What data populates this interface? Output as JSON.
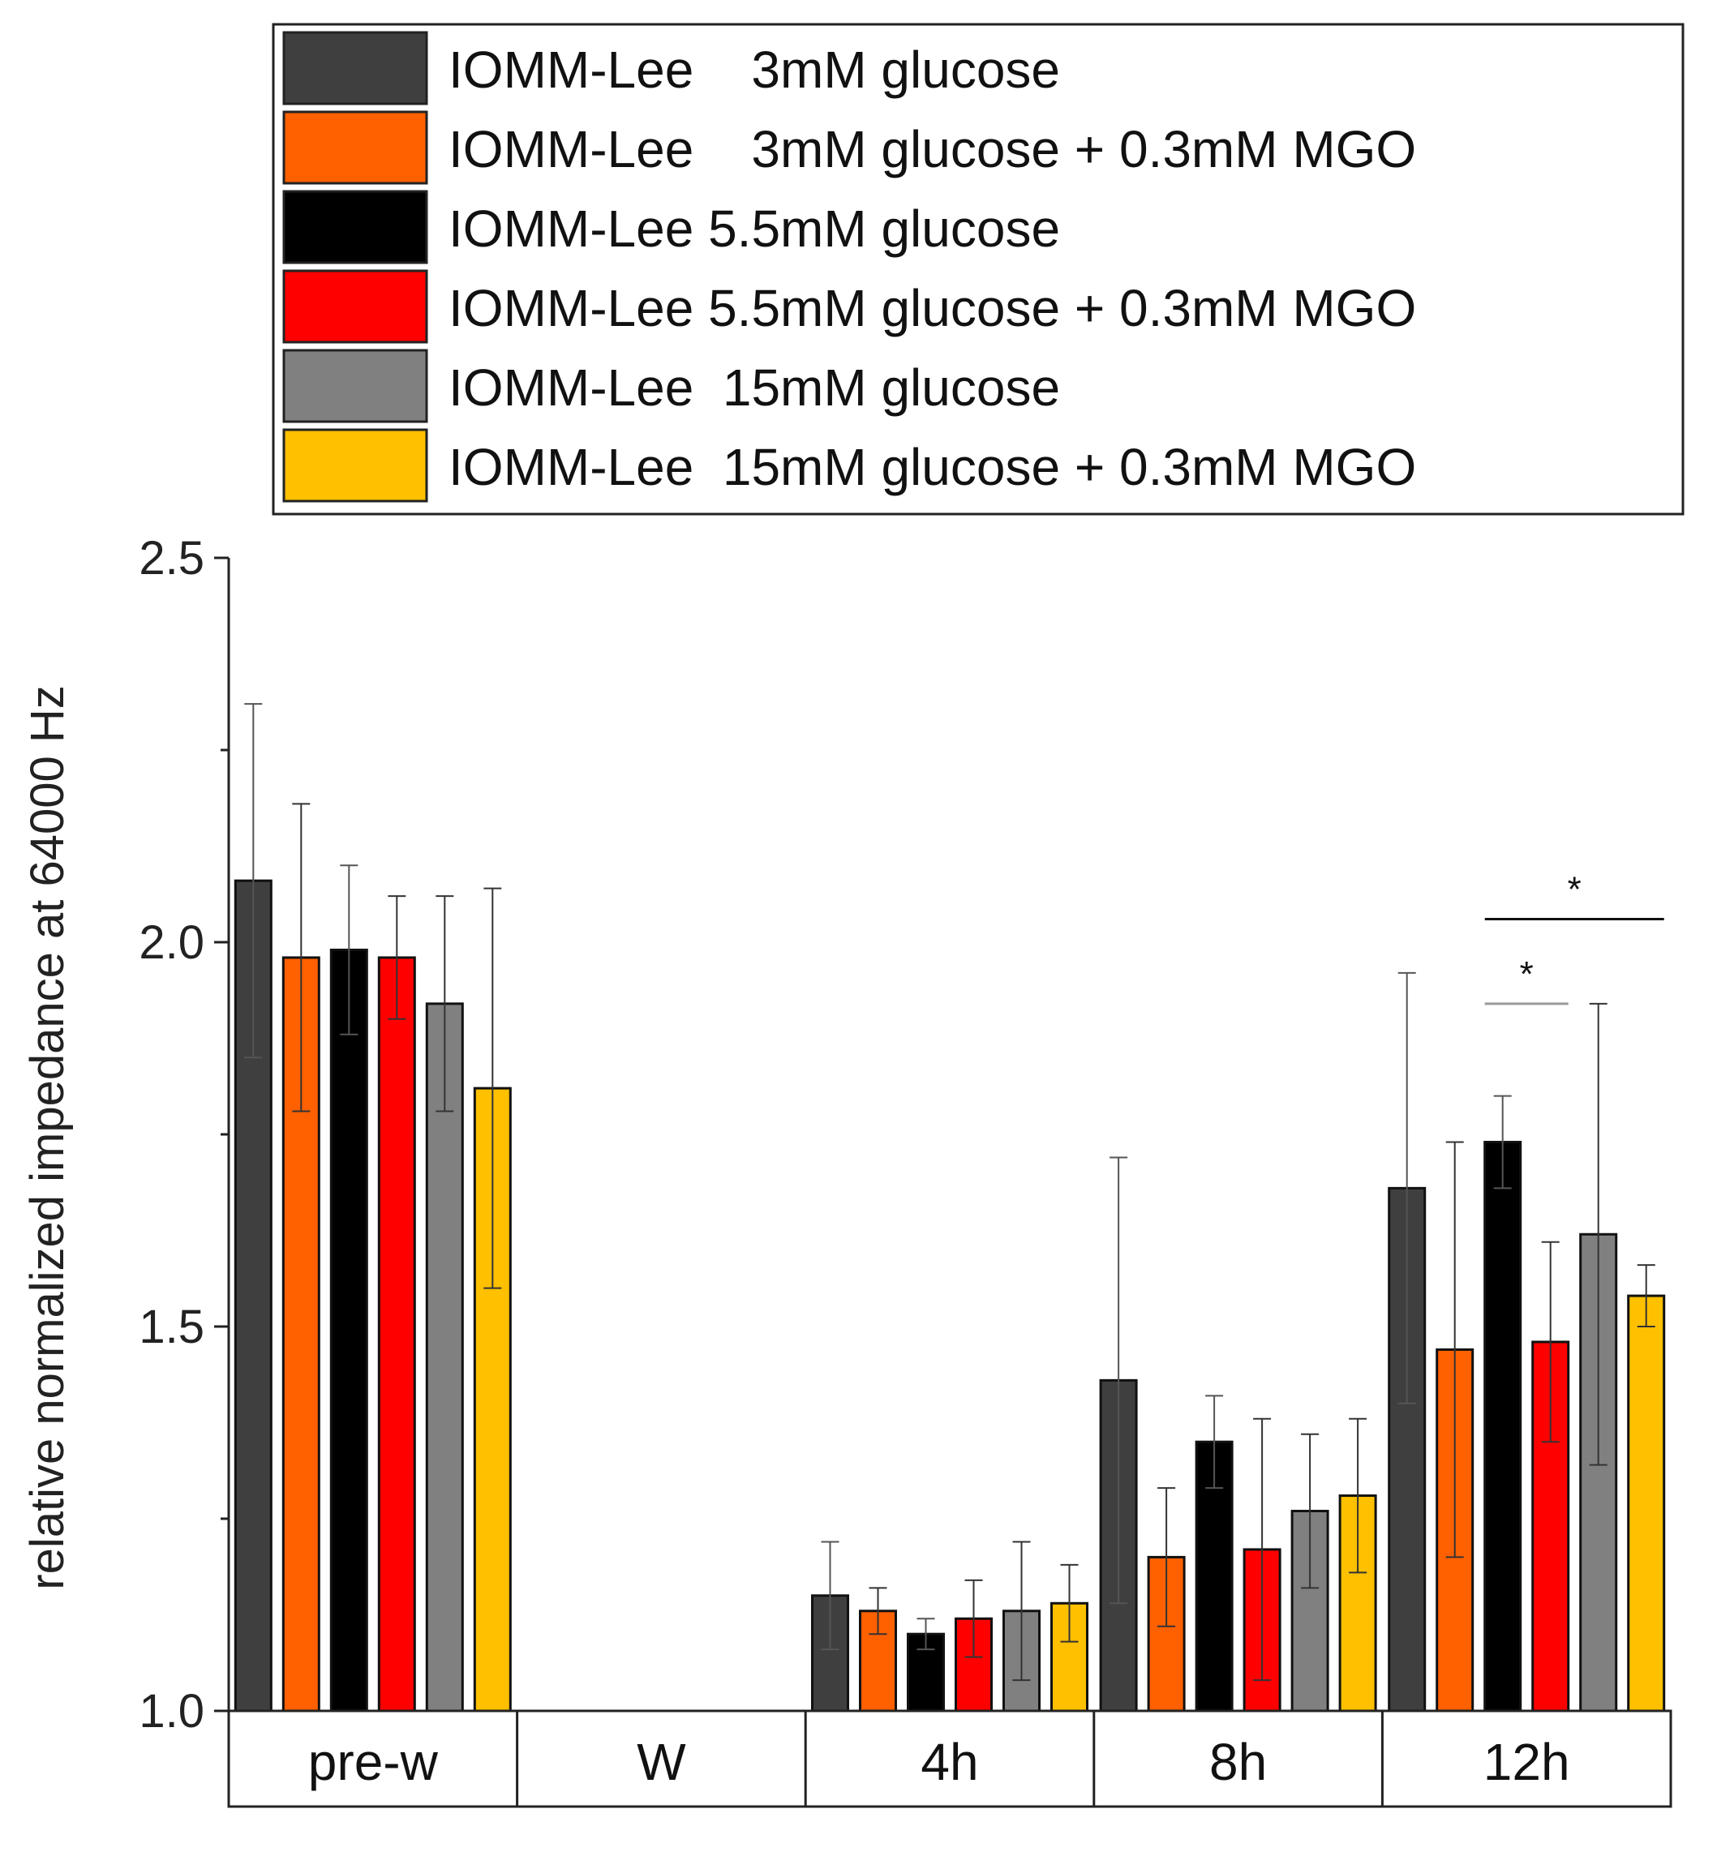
{
  "chart_data": {
    "type": "bar",
    "title": "",
    "xlabel": "",
    "ylabel": "relative normalized impedance at 64000 Hz",
    "ylim": [
      1.0,
      2.5
    ],
    "yticks": [
      "1.0",
      "1.5",
      "2.0",
      "2.5"
    ],
    "grid": false,
    "legend_position": "top",
    "categories": [
      "pre-w",
      "W",
      "4h",
      "8h",
      "12h"
    ],
    "series": [
      {
        "name": "IOMM-Lee    3mM glucose",
        "color": "#3f3f3f",
        "values": [
          2.08,
          null,
          1.15,
          1.43,
          1.68
        ],
        "errors": [
          0.23,
          null,
          0.07,
          0.29,
          0.28
        ]
      },
      {
        "name": "IOMM-Lee    3mM glucose + 0.3mM MGO",
        "color": "#ff6000",
        "values": [
          1.98,
          null,
          1.13,
          1.2,
          1.47
        ],
        "errors": [
          0.2,
          null,
          0.03,
          0.09,
          0.27
        ]
      },
      {
        "name": "IOMM-Lee 5.5mM glucose",
        "color": "#000000",
        "values": [
          1.99,
          null,
          1.1,
          1.35,
          1.74
        ],
        "errors": [
          0.11,
          null,
          0.02,
          0.06,
          0.06
        ]
      },
      {
        "name": "IOMM-Lee 5.5mM glucose + 0.3mM MGO",
        "color": "#ff0000",
        "values": [
          1.98,
          null,
          1.12,
          1.21,
          1.48
        ],
        "errors": [
          0.08,
          null,
          0.05,
          0.17,
          0.13
        ]
      },
      {
        "name": "IOMM-Lee  15mM glucose",
        "color": "#808080",
        "values": [
          1.92,
          null,
          1.13,
          1.26,
          1.62
        ],
        "errors": [
          0.14,
          null,
          0.09,
          0.1,
          0.3
        ]
      },
      {
        "name": "IOMM-Lee  15mM glucose + 0.3mM MGO",
        "color": "#ffc000",
        "values": [
          1.81,
          null,
          1.14,
          1.28,
          1.54
        ],
        "errors": [
          0.26,
          null,
          0.05,
          0.1,
          0.04
        ]
      }
    ],
    "annotations": [
      {
        "text": "*",
        "category": "12h",
        "from_series": 2,
        "to_series": 3,
        "line_color": "#9a9a9a",
        "level": 1.92
      },
      {
        "text": "*",
        "category": "12h",
        "from_series": 2,
        "to_series": 5,
        "line_color": "#111111",
        "level": 2.03
      }
    ]
  }
}
